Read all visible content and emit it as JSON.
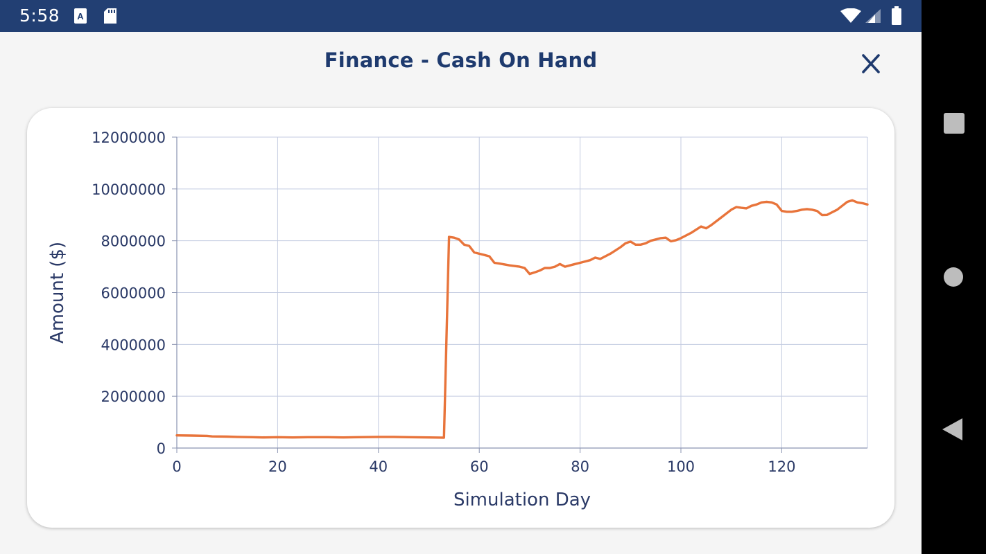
{
  "status_bar": {
    "time": "5:58",
    "icons": [
      "accessibility-a-icon",
      "sd-card-icon",
      "wifi-icon",
      "cell-signal-icon",
      "battery-icon"
    ]
  },
  "header": {
    "title": "Finance - Cash On Hand",
    "close_icon": "close-icon"
  },
  "nav": {
    "icons": [
      "recents-square-icon",
      "home-circle-icon",
      "back-triangle-icon"
    ]
  },
  "colors": {
    "status_bar": "#223f73",
    "title": "#1e3a6e",
    "line": "#e8743b",
    "grid": "#c3cbe0",
    "axis_text": "#2b3a67"
  },
  "chart_data": {
    "type": "line",
    "xlabel": "Simulation Day",
    "ylabel": "Amount ($)",
    "xlim": [
      0,
      137
    ],
    "ylim": [
      0,
      12000000
    ],
    "x_ticks": [
      0,
      20,
      40,
      60,
      80,
      100,
      120
    ],
    "y_ticks": [
      0,
      2000000,
      4000000,
      6000000,
      8000000,
      10000000,
      12000000
    ],
    "x_tick_labels": [
      "0",
      "20",
      "40",
      "60",
      "80",
      "100",
      "120"
    ],
    "y_tick_labels": [
      "0",
      "2000000",
      "4000000",
      "6000000",
      "8000000",
      "10000000",
      "12000000"
    ],
    "grid": true,
    "series": [
      {
        "name": "",
        "x": [
          0,
          3,
          6,
          7,
          10,
          12,
          15,
          17,
          20,
          23,
          26,
          30,
          33,
          36,
          40,
          43,
          46,
          50,
          53,
          54,
          55,
          56,
          57,
          58,
          59,
          60,
          61,
          62,
          63,
          64,
          66,
          68,
          69,
          70,
          71,
          72,
          73,
          74,
          75,
          76,
          77,
          78,
          79,
          80,
          82,
          83,
          84,
          86,
          88,
          89,
          90,
          91,
          92,
          93,
          94,
          95,
          96,
          97,
          98,
          99,
          100,
          102,
          104,
          105,
          106,
          108,
          110,
          111,
          112,
          113,
          114,
          115,
          116,
          117,
          118,
          119,
          120,
          121,
          122,
          123,
          124,
          125,
          126,
          127,
          128,
          129,
          130,
          131,
          132,
          133,
          134,
          135,
          136,
          137
        ],
        "y": [
          490000,
          480000,
          470000,
          450000,
          440000,
          430000,
          420000,
          410000,
          420000,
          410000,
          420000,
          420000,
          410000,
          420000,
          430000,
          430000,
          420000,
          410000,
          400000,
          8150000,
          8120000,
          8050000,
          7850000,
          7800000,
          7550000,
          7500000,
          7450000,
          7400000,
          7150000,
          7120000,
          7050000,
          7000000,
          6950000,
          6720000,
          6780000,
          6850000,
          6950000,
          6950000,
          7000000,
          7100000,
          7000000,
          7050000,
          7100000,
          7150000,
          7250000,
          7350000,
          7300000,
          7500000,
          7750000,
          7900000,
          7970000,
          7850000,
          7850000,
          7900000,
          8000000,
          8050000,
          8100000,
          8120000,
          7980000,
          8020000,
          8100000,
          8300000,
          8550000,
          8480000,
          8600000,
          8900000,
          9200000,
          9300000,
          9270000,
          9250000,
          9350000,
          9400000,
          9480000,
          9500000,
          9480000,
          9400000,
          9150000,
          9120000,
          9120000,
          9150000,
          9200000,
          9220000,
          9200000,
          9150000,
          8990000,
          9000000,
          9100000,
          9200000,
          9350000,
          9500000,
          9560000,
          9480000,
          9450000,
          9400000
        ]
      }
    ]
  }
}
